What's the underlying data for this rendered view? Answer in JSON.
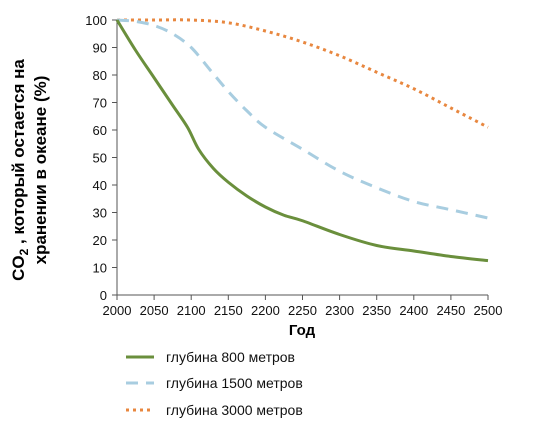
{
  "chart_data": {
    "type": "line",
    "title": "",
    "xlabel": "Год",
    "ylabel": {
      "line1_prefix": "CO",
      "line1_subscript": "2",
      "line1_suffix": " , который остается на",
      "line2": "хранении в океане (%)"
    },
    "xlim": [
      2000,
      2500
    ],
    "ylim": [
      0,
      100
    ],
    "x_ticks": [
      2000,
      2050,
      2100,
      2150,
      2200,
      2250,
      2300,
      2350,
      2400,
      2450,
      2500
    ],
    "y_ticks": [
      0,
      10,
      20,
      30,
      40,
      50,
      60,
      70,
      80,
      90,
      100
    ],
    "grid": false,
    "legend_position": "bottom",
    "series": [
      {
        "name": "глубина 800 метров",
        "color": "#6a8f3c",
        "style": "solid",
        "x": [
          2000,
          2025,
          2050,
          2075,
          2095,
          2110,
          2130,
          2150,
          2175,
          2200,
          2225,
          2250,
          2300,
          2350,
          2400,
          2450,
          2500
        ],
        "y": [
          100,
          89,
          79,
          69,
          61,
          53,
          46,
          41,
          36,
          32,
          29,
          27,
          22,
          18,
          16,
          14,
          12.5
        ]
      },
      {
        "name": "глубина 1500 метров",
        "color": "#a8cde0",
        "style": "dashed",
        "x": [
          2000,
          2025,
          2050,
          2075,
          2100,
          2125,
          2150,
          2175,
          2200,
          2250,
          2300,
          2350,
          2400,
          2450,
          2500
        ],
        "y": [
          100,
          99.5,
          98,
          95,
          90,
          82,
          74,
          67,
          61,
          53,
          45,
          39,
          34,
          31,
          28
        ]
      },
      {
        "name": "глубина 3000 метров",
        "color": "#e8873f",
        "style": "dotted",
        "x": [
          2000,
          2050,
          2100,
          2150,
          2200,
          2250,
          2300,
          2350,
          2400,
          2450,
          2500
        ],
        "y": [
          100,
          100,
          100,
          99,
          96,
          92,
          87,
          81,
          75,
          68,
          61
        ]
      }
    ]
  }
}
